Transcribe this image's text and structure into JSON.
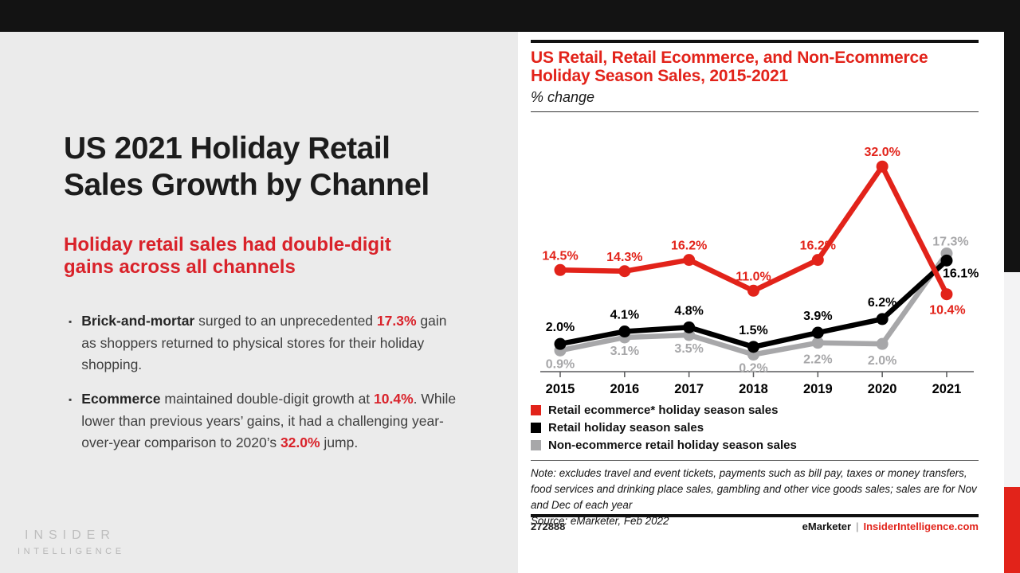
{
  "slide": {
    "title_lines": [
      "US 2021 Holiday Retail",
      "Sales Growth by Channel"
    ],
    "subtitle_lines": [
      "Holiday retail sales had double-digit",
      "gains across all channels"
    ],
    "bullets": [
      {
        "segments": [
          {
            "text": "Brick-and-mortar",
            "style": "lead"
          },
          {
            "text": " surged to an unprecedented ",
            "style": "normal"
          },
          {
            "text": "17.3%",
            "style": "red"
          },
          {
            "text": " gain as shoppers returned to physical stores for their holiday shopping.",
            "style": "normal"
          }
        ]
      },
      {
        "segments": [
          {
            "text": "Ecommerce",
            "style": "lead"
          },
          {
            "text": " maintained double-digit growth at ",
            "style": "normal"
          },
          {
            "text": "10.4%",
            "style": "red"
          },
          {
            "text": ". While lower than previous years’ gains, it had a challenging year-over-year comparison to 2020’s ",
            "style": "normal"
          },
          {
            "text": "32.0%",
            "style": "red"
          },
          {
            "text": " jump.",
            "style": "normal"
          }
        ]
      }
    ],
    "logo": {
      "line1": "INSIDER",
      "line2": "INTELLIGENCE"
    }
  },
  "chart": {
    "title_lines": [
      "US Retail, Retail Ecommerce, and Non-Ecommerce",
      "Holiday Season Sales, 2015-2021"
    ],
    "unit_label": "% change",
    "note": "Note: excludes travel and event tickets, payments such as bill pay, taxes or money transfers, food services and drinking place sales, gambling and other vice goods sales; sales are for Nov and Dec of each year",
    "source": "Source: eMarketer, Feb 2022",
    "footer": {
      "id": "272888",
      "brand": "eMarketer",
      "separator": "|",
      "site": "InsiderIntelligence.com"
    }
  },
  "chart_data": {
    "type": "line",
    "title": "US Retail, Retail Ecommerce, and Non-Ecommerce Holiday Season Sales, 2015-2021",
    "ylabel": "% change",
    "categories": [
      "2015",
      "2016",
      "2017",
      "2018",
      "2019",
      "2020",
      "2021"
    ],
    "series": [
      {
        "name": "Retail ecommerce* holiday season sales",
        "color": "#E2231A",
        "values": [
          14.5,
          14.3,
          16.2,
          11.0,
          16.2,
          32.0,
          10.4
        ]
      },
      {
        "name": "Retail holiday season sales",
        "color": "#000000",
        "values": [
          2.0,
          4.1,
          4.8,
          1.5,
          3.9,
          6.2,
          16.1
        ]
      },
      {
        "name": "Non-ecommerce retail holiday season sales",
        "color": "#A7A7A9",
        "values": [
          0.9,
          3.1,
          3.5,
          0.2,
          2.2,
          2.0,
          17.3
        ]
      }
    ],
    "ylim": [
      -3,
      35
    ],
    "grid": false,
    "legend_position": "bottom",
    "data_labels": true,
    "label_format": "{value}%"
  },
  "colors": {
    "accent_red": "#E2231A",
    "text_red": "#D9222A",
    "bar_black": "#131313",
    "panel_gray": "#EBEBEB",
    "strip_gray": "#F3F3F4",
    "body_text": "#3f3f3f",
    "series_gray": "#A7A7A9"
  }
}
